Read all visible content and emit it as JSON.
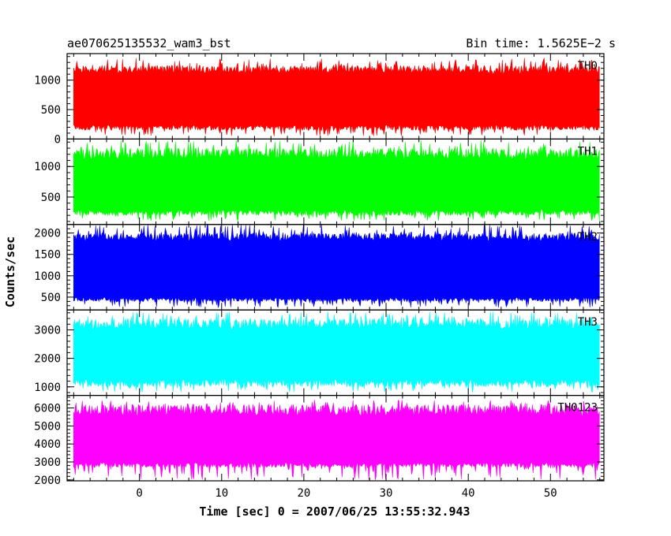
{
  "header": {
    "left_title": "ae070625135532_wam3_bst",
    "right_title": "Bin time: 1.5625E−2 s"
  },
  "chart_data": {
    "type": "line",
    "xlabel": "Time [sec] 0 = 2007/06/25 13:55:32.943",
    "ylabel": "Counts/sec",
    "xlim": [
      -8.8,
      56.5
    ],
    "data_x_range": [
      -8,
      56
    ],
    "xticks": [
      0,
      10,
      20,
      30,
      40,
      50
    ],
    "grid": false,
    "panels": [
      {
        "name": "TH0",
        "color": "#ff0000",
        "ylim": [
          0,
          1450
        ],
        "yticks": [
          0,
          500,
          1000
        ],
        "envelope": {
          "lower": [
            50,
            250
          ],
          "upper": [
            1100,
            1380
          ],
          "typical": [
            150,
            1250
          ]
        }
      },
      {
        "name": "TH1",
        "color": "#00ff00",
        "ylim": [
          50,
          1450
        ],
        "yticks": [
          500,
          1000
        ],
        "envelope": {
          "lower": [
            100,
            300
          ],
          "upper": [
            1100,
            1430
          ],
          "typical": [
            200,
            1300
          ]
        }
      },
      {
        "name": "TH2",
        "color": "#0000ff",
        "ylim": [
          200,
          2200
        ],
        "yticks": [
          500,
          1000,
          1500,
          2000
        ],
        "envelope": {
          "lower": [
            250,
            500
          ],
          "upper": [
            1800,
            2200
          ],
          "typical": [
            400,
            2000
          ]
        }
      },
      {
        "name": "TH3",
        "color": "#00ffff",
        "ylim": [
          700,
          3700
        ],
        "yticks": [
          1000,
          2000,
          3000
        ],
        "envelope": {
          "lower": [
            800,
            1300
          ],
          "upper": [
            3000,
            3650
          ],
          "typical": [
            1000,
            3400
          ]
        }
      },
      {
        "name": "TH0123",
        "color": "#ff00ff",
        "ylim": [
          1950,
          6700
        ],
        "yticks": [
          2000,
          3000,
          4000,
          5000,
          6000
        ],
        "envelope": {
          "lower": [
            2000,
            3000
          ],
          "upper": [
            5500,
            6450
          ],
          "typical": [
            2700,
            6200
          ]
        }
      }
    ]
  }
}
